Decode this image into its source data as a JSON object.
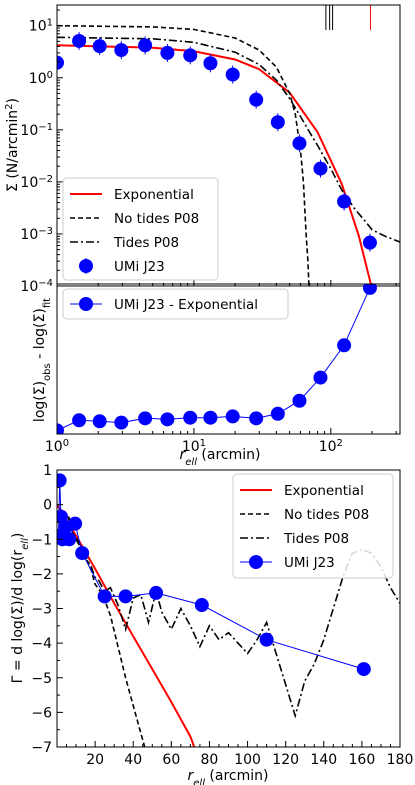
{
  "chart_data": [
    {
      "id": "profile",
      "type": "line",
      "xscale": "log",
      "yscale": "log",
      "xlim": [
        1,
        320
      ],
      "ylim": [
        0.0001,
        25
      ],
      "ylabel": "Σ (N/arcmin²)",
      "ylabel_main": "Σ (N/arcmin",
      "ylabel_sup": "2",
      "ylabel_tail": ")",
      "yticks": [
        {
          "base": "10",
          "exp": "1",
          "value": 10
        },
        {
          "base": "10",
          "exp": "0",
          "value": 1
        },
        {
          "base": "10",
          "exp": "−1",
          "value": 0.1
        },
        {
          "base": "10",
          "exp": "−2",
          "value": 0.01
        },
        {
          "base": "10",
          "exp": "−3",
          "value": 0.001
        },
        {
          "base": "10",
          "exp": "−4",
          "value": 0.0001
        }
      ],
      "legend_position": "lower left",
      "vlines_black": [
        92,
        98,
        103
      ],
      "vlines_red": [
        195
      ],
      "series": [
        {
          "name": "Exponential",
          "style": "solid",
          "color": "#ff0000",
          "x": [
            1,
            5,
            10,
            20,
            30,
            50,
            80,
            120,
            160,
            200,
            240
          ],
          "y": [
            4.2,
            3.79,
            3.22,
            2.24,
            1.46,
            0.52,
            0.09,
            0.0092,
            0.00092,
            8.7e-05,
            8e-06
          ]
        },
        {
          "name": "No tides P08",
          "style": "dashed",
          "color": "#000000",
          "x": [
            1,
            5,
            10,
            20,
            30,
            40,
            50,
            55,
            60,
            63,
            66,
            68,
            70
          ],
          "y": [
            10,
            9.5,
            8.5,
            5.8,
            3.4,
            1.6,
            0.5,
            0.2,
            0.04,
            0.01,
            0.001,
            0.0003,
            5e-05
          ]
        },
        {
          "name": "Tides P08",
          "style": "dashdot",
          "color": "#000000",
          "x": [
            1,
            5,
            10,
            20,
            30,
            40,
            50,
            60,
            70,
            80,
            100,
            120,
            150,
            180,
            200,
            250,
            320
          ],
          "y": [
            6,
            5.6,
            4.8,
            3.1,
            1.8,
            0.9,
            0.4,
            0.18,
            0.09,
            0.05,
            0.018,
            0.007,
            0.003,
            0.0017,
            0.0012,
            0.0009,
            0.0007
          ]
        }
      ],
      "points": {
        "name": "UMi J23",
        "color": "#0000ff",
        "x": [
          1,
          1.45,
          2.05,
          2.95,
          4.4,
          6.4,
          9.4,
          13.2,
          19.2,
          28.5,
          41,
          59,
          84,
          125,
          193
        ],
        "y": [
          1.95,
          5.1,
          4.05,
          3.4,
          4.2,
          3.0,
          2.7,
          1.9,
          1.15,
          0.38,
          0.14,
          0.055,
          0.018,
          0.0042,
          0.00068
        ]
      }
    },
    {
      "id": "residual",
      "type": "line",
      "xscale": "log",
      "xlim": [
        1,
        320
      ],
      "ylim": [
        -0.4,
        4.2
      ],
      "xlabel_main": "r",
      "xlabel_sub": "ell",
      "xlabel_tail": " (arcmin)",
      "ylabel_a": "log(Σ)",
      "ylabel_a_sub": "obs",
      "ylabel_b": " - log(Σ)",
      "ylabel_b_sub": "fit",
      "xticks": [
        {
          "base": "10",
          "exp": "0",
          "value": 1
        },
        {
          "base": "10",
          "exp": "1",
          "value": 10
        },
        {
          "base": "10",
          "exp": "2",
          "value": 100
        }
      ],
      "legend_position": "upper left",
      "series": [
        {
          "name": "UMi J23 - Exponential",
          "color": "#0000ff",
          "x": [
            1,
            1.45,
            2.05,
            2.95,
            4.4,
            6.4,
            9.4,
            13.2,
            19.2,
            28.5,
            41,
            59,
            84,
            125,
            193
          ],
          "y": [
            -0.29,
            0.02,
            -0.01,
            -0.05,
            0.08,
            0.05,
            0.1,
            0.1,
            0.14,
            0.08,
            0.22,
            0.62,
            1.33,
            2.32,
            4.08
          ]
        }
      ]
    },
    {
      "id": "slope",
      "type": "line",
      "xlim": [
        0,
        180
      ],
      "ylim": [
        -7,
        1
      ],
      "xlabel_main": "r",
      "xlabel_sub": "ell",
      "xlabel_tail": " (arcmin)",
      "ylabel": "Γ = d log(Σ)/d log(r_ell)",
      "ylabel_main": "Γ = d log(Σ)/d log(r",
      "ylabel_sub": "ell",
      "ylabel_tail": ")",
      "xticks": [
        "20",
        "40",
        "60",
        "80",
        "100",
        "120",
        "140",
        "160",
        "180"
      ],
      "yticks": [
        "1",
        "0",
        "−1",
        "−2",
        "−3",
        "−4",
        "−5",
        "−6",
        "−7"
      ],
      "legend_position": "upper right",
      "series": [
        {
          "name": "Exponential",
          "style": "solid",
          "color": "#ff0000",
          "x": [
            0,
            5,
            10,
            20,
            30,
            40,
            50,
            60,
            70,
            72
          ],
          "y": [
            0,
            -0.45,
            -0.9,
            -1.85,
            -2.85,
            -3.8,
            -4.75,
            -5.7,
            -6.7,
            -7.0
          ]
        },
        {
          "name": "No tides P08",
          "style": "dashed",
          "color": "#000000",
          "x": [
            0,
            2,
            4,
            6,
            8,
            10,
            12,
            15,
            18,
            20,
            24,
            28,
            32,
            36,
            40,
            43,
            46
          ],
          "y": [
            -0.5,
            -0.1,
            -0.4,
            -0.3,
            -0.8,
            -0.95,
            -1.15,
            -1.5,
            -1.9,
            -2.3,
            -2.6,
            -3.2,
            -4.1,
            -5.0,
            -5.8,
            -6.4,
            -7.0
          ]
        },
        {
          "name": "Tides P08",
          "style": "dashdot",
          "color": "#000000",
          "x": [
            0,
            2,
            4,
            6,
            8,
            10,
            12,
            15,
            18,
            20,
            22,
            25,
            28,
            32,
            36,
            40,
            44,
            48,
            52,
            55,
            60,
            65,
            70,
            75,
            80,
            85,
            90,
            95,
            100,
            105,
            110,
            115,
            120,
            125,
            130,
            135,
            140,
            145,
            150,
            155,
            160,
            165,
            170,
            175,
            180
          ],
          "y": [
            -0.5,
            -0.2,
            -0.5,
            -0.4,
            -0.8,
            -1.0,
            -1.2,
            -1.5,
            -1.8,
            -2.1,
            -2.2,
            -2.5,
            -2.4,
            -2.9,
            -3.6,
            -2.7,
            -2.6,
            -3.4,
            -2.5,
            -3.1,
            -3.6,
            -3.0,
            -3.5,
            -4.1,
            -3.5,
            -3.9,
            -3.7,
            -4.0,
            -4.3,
            -3.9,
            -3.4,
            -4.3,
            -5.2,
            -6.1,
            -5.1,
            -4.6,
            -3.9,
            -3.0,
            -2.1,
            -1.4,
            -1.3,
            -1.4,
            -1.8,
            -2.4,
            -2.85
          ]
        }
      ],
      "points": {
        "name": "UMi J23",
        "color": "#0000ff",
        "x": [
          0.8,
          1.4,
          2.1,
          2.9,
          4.4,
          6.4,
          9.5,
          13.2,
          25,
          36,
          52,
          76,
          110,
          161
        ],
        "y": [
          -0.9,
          0.7,
          -0.35,
          -1.0,
          -0.65,
          -1.0,
          -0.55,
          -1.4,
          -2.65,
          -2.65,
          -2.55,
          -2.9,
          -3.9,
          -4.75
        ]
      }
    }
  ]
}
